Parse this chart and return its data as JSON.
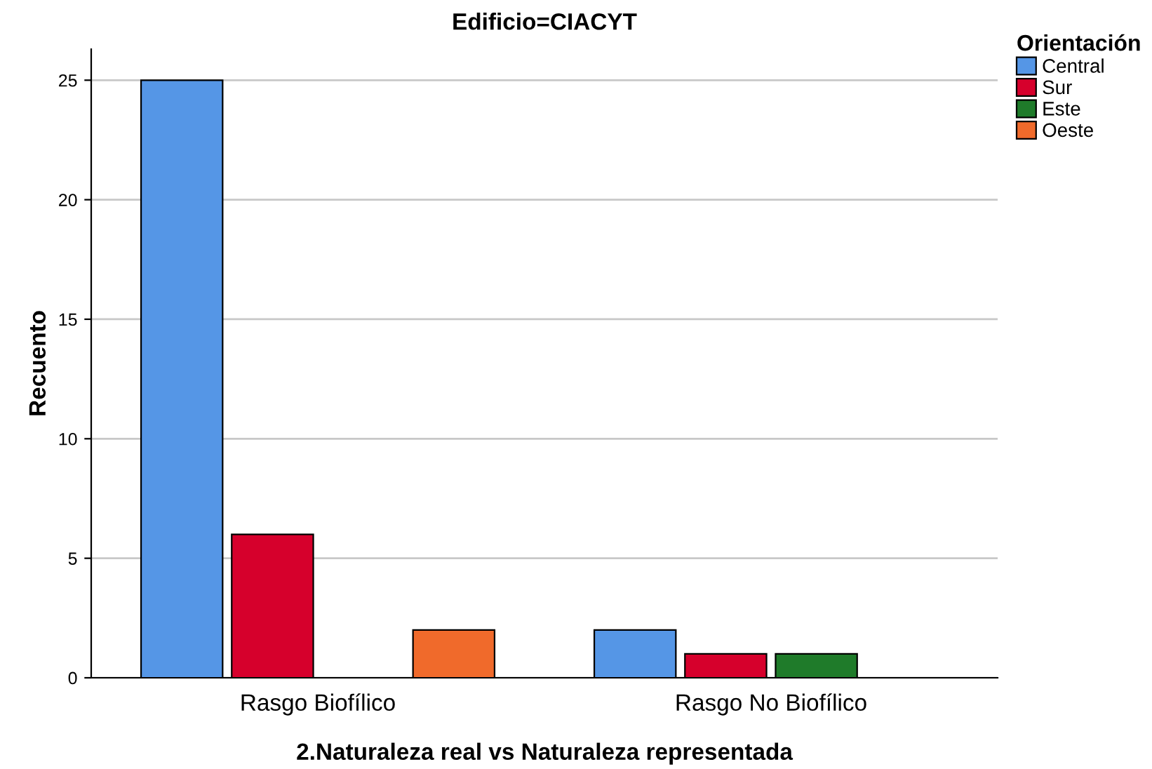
{
  "chart_data": {
    "type": "bar",
    "title": "Edificio=CIACYT",
    "xlabel": "2.Naturaleza real vs Naturaleza representada",
    "ylabel": "Recuento",
    "categories": [
      "Rasgo Biofílico",
      "Rasgo No Biofílico"
    ],
    "series": [
      {
        "name": "Central",
        "color": "#5596e6",
        "values": [
          25,
          2
        ]
      },
      {
        "name": "Sur",
        "color": "#d6002c",
        "values": [
          6,
          1
        ]
      },
      {
        "name": "Este",
        "color": "#1f7b2a",
        "values": [
          null,
          1
        ]
      },
      {
        "name": "Oeste",
        "color": "#f06a2b",
        "values": [
          2,
          null
        ]
      }
    ],
    "legend_title": "Orientación",
    "legend": "top right",
    "ylim": [
      0,
      26.3
    ],
    "yticks": [
      0,
      5,
      10,
      15,
      20,
      25
    ],
    "grid": "y"
  }
}
